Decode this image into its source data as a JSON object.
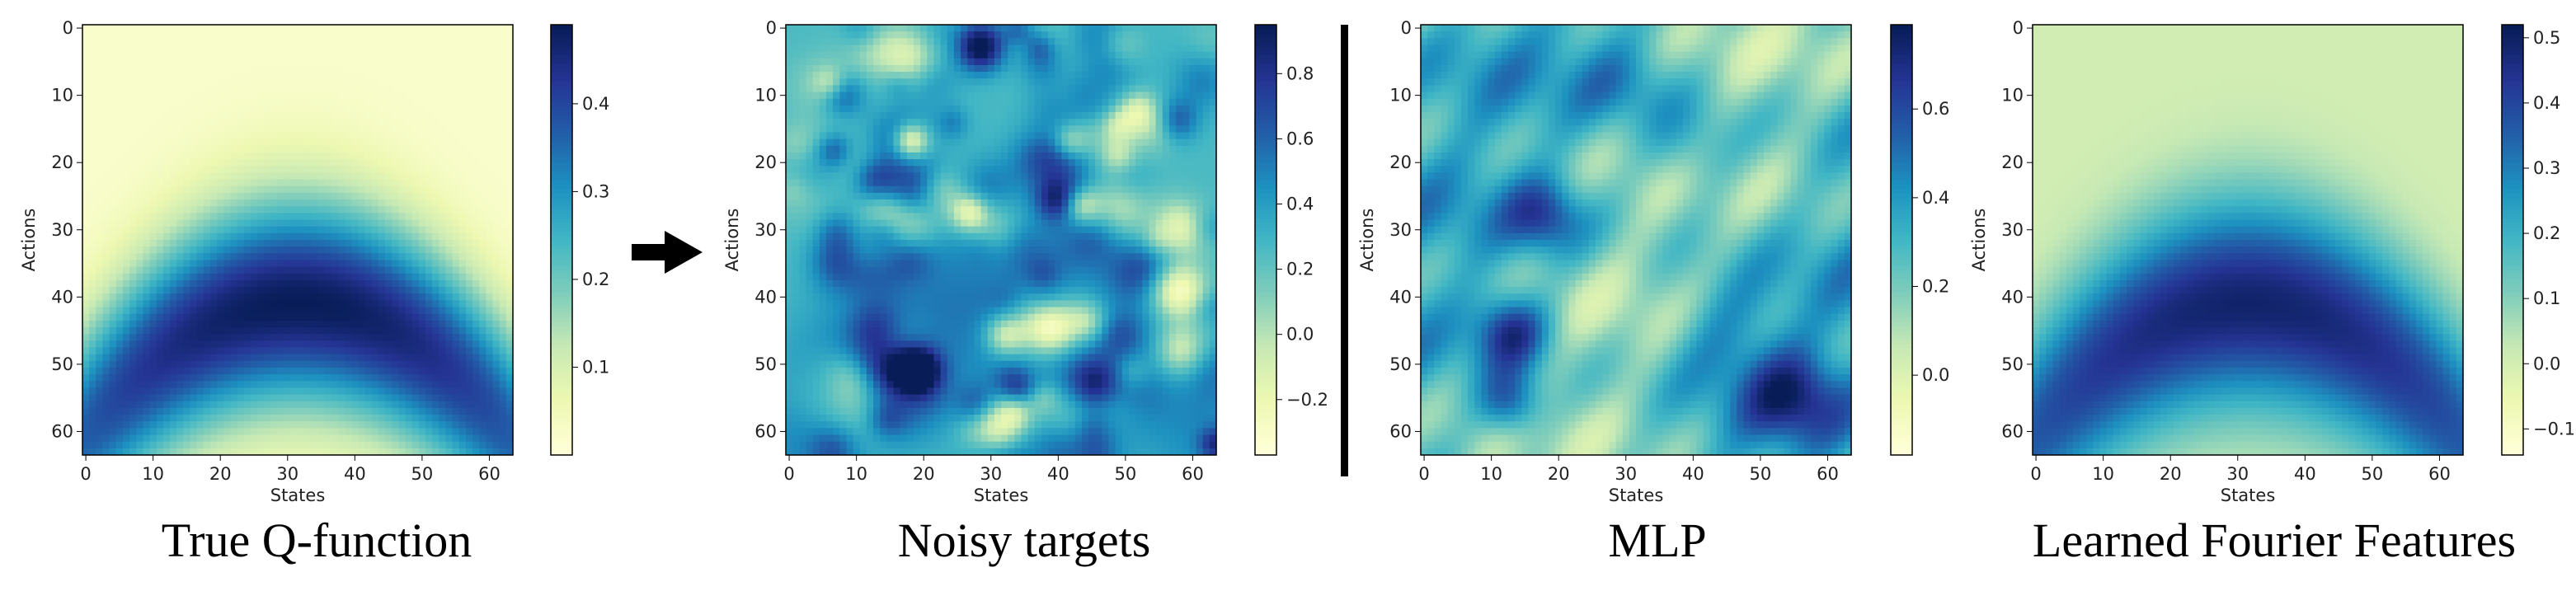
{
  "figure_titles": [
    "True Q-function",
    "Noisy targets",
    "MLP",
    "Learned Fourier Features"
  ],
  "colormap": [
    "#ffffd9",
    "#edf8b1",
    "#c7e9b4",
    "#7fcdbb",
    "#41b6c4",
    "#1d91c0",
    "#225ea8",
    "#253494",
    "#081d58"
  ],
  "chart_data": [
    {
      "type": "heatmap",
      "title": "True Q-function",
      "xlabel": "States",
      "ylabel": "Actions",
      "grid_size": [
        64,
        64
      ],
      "xlim": [
        0,
        63
      ],
      "ylim": [
        63,
        0
      ],
      "x_ticks": [
        "0",
        "10",
        "20",
        "30",
        "40",
        "50",
        "60"
      ],
      "y_ticks": [
        "0",
        "10",
        "20",
        "30",
        "40",
        "50",
        "60"
      ],
      "pattern": "inverted parabola band peaking near x=32, y≈32–50; light at corners",
      "colorbar": {
        "min": 0.0,
        "max": 0.49,
        "ticks": [
          "0.1",
          "0.2",
          "0.3",
          "0.4"
        ],
        "tick_values": [
          0.1,
          0.2,
          0.3,
          0.4
        ]
      }
    },
    {
      "type": "heatmap",
      "title": "Noisy targets",
      "xlabel": "States",
      "ylabel": "Actions",
      "grid_size": [
        64,
        64
      ],
      "xlim": [
        0,
        63
      ],
      "ylim": [
        63,
        0
      ],
      "x_ticks": [
        "0",
        "10",
        "20",
        "30",
        "40",
        "50",
        "60"
      ],
      "y_ticks": [
        "0",
        "10",
        "20",
        "30",
        "40",
        "50",
        "60"
      ],
      "pattern": "true Q-function plus high-frequency noise blobs",
      "colorbar": {
        "min": -0.37,
        "max": 0.95,
        "ticks": [
          "−0.2",
          "0.0",
          "0.2",
          "0.4",
          "0.6",
          "0.8"
        ],
        "tick_values": [
          -0.2,
          0.0,
          0.2,
          0.4,
          0.6,
          0.8
        ]
      }
    },
    {
      "type": "heatmap",
      "title": "MLP",
      "xlabel": "States",
      "ylabel": "Actions",
      "grid_size": [
        64,
        64
      ],
      "xlim": [
        0,
        63
      ],
      "ylim": [
        63,
        0
      ],
      "x_ticks": [
        "0",
        "10",
        "20",
        "30",
        "40",
        "50",
        "60"
      ],
      "y_ticks": [
        "0",
        "10",
        "20",
        "30",
        "40",
        "50",
        "60"
      ],
      "pattern": "smoothed noisy fit with dark spots near (13,45),(13,56),(18,28),(55,55)",
      "colorbar": {
        "min": -0.18,
        "max": 0.79,
        "ticks": [
          "0.0",
          "0.2",
          "0.4",
          "0.6"
        ],
        "tick_values": [
          0.0,
          0.2,
          0.4,
          0.6
        ]
      }
    },
    {
      "type": "heatmap",
      "title": "Learned Fourier Features",
      "xlabel": "States",
      "ylabel": "Actions",
      "grid_size": [
        64,
        64
      ],
      "xlim": [
        0,
        63
      ],
      "ylim": [
        63,
        0
      ],
      "x_ticks": [
        "0",
        "10",
        "20",
        "30",
        "40",
        "50",
        "60"
      ],
      "y_ticks": [
        "0",
        "10",
        "20",
        "30",
        "40",
        "50",
        "60"
      ],
      "pattern": "close reproduction of the true Q-function band",
      "colorbar": {
        "min": -0.14,
        "max": 0.52,
        "ticks": [
          "−0.1",
          "0.0",
          "0.1",
          "0.2",
          "0.3",
          "0.4",
          "0.5"
        ],
        "tick_values": [
          -0.1,
          0.0,
          0.1,
          0.2,
          0.3,
          0.4,
          0.5
        ]
      }
    }
  ]
}
